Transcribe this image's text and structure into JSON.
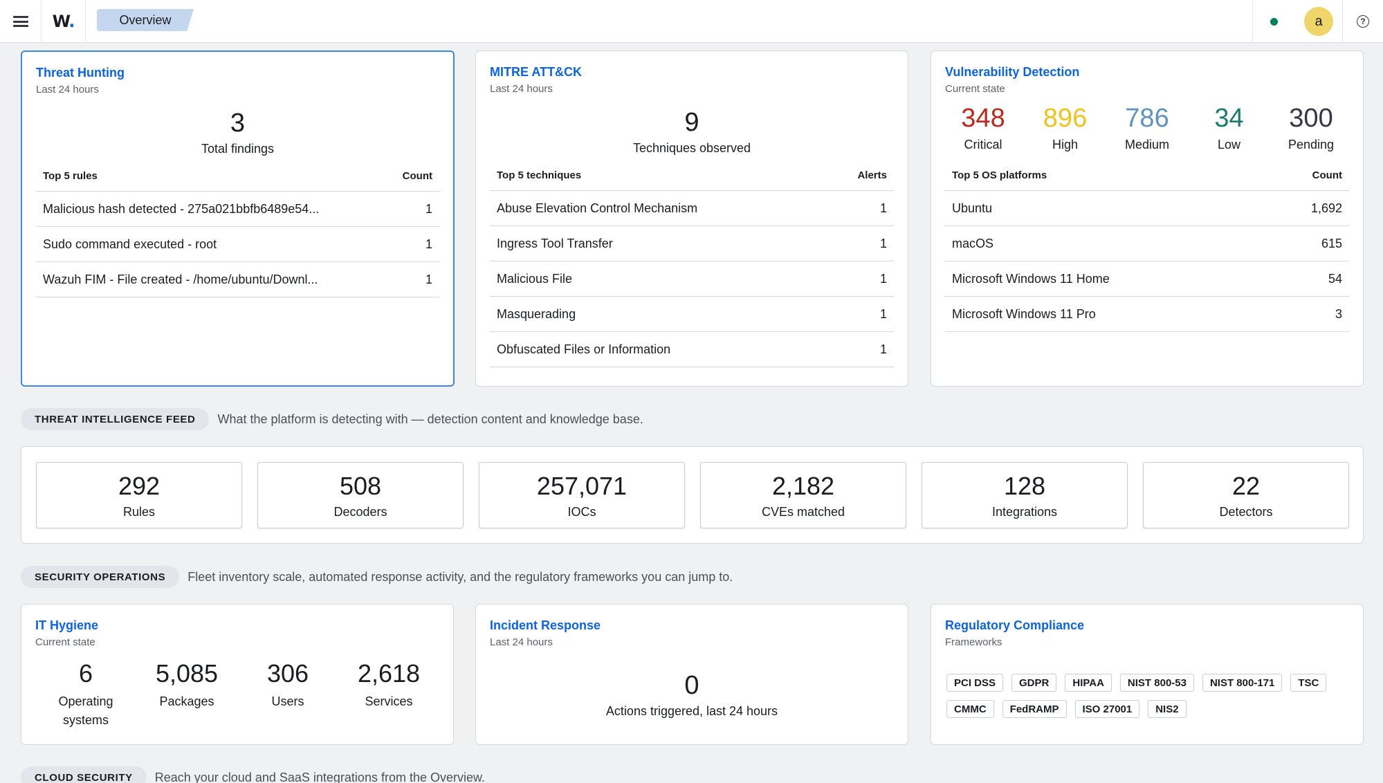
{
  "topbar": {
    "logo_text": "W",
    "logo_dot": ".",
    "breadcrumb": "Overview",
    "avatar_letter": "a",
    "help_glyph": "?",
    "status_color": "#00805a"
  },
  "threat_hunting": {
    "title": "Threat Hunting",
    "subtitle": "Last 24 hours",
    "total": "3",
    "total_label": "Total findings",
    "table_header": "Top 5 rules",
    "count_header": "Count",
    "rows": [
      {
        "name": "Malicious hash detected - 275a021bbfb6489e54...",
        "count": "1"
      },
      {
        "name": "Sudo command executed - root",
        "count": "1"
      },
      {
        "name": "Wazuh FIM - File created - /home/ubuntu/Downl...",
        "count": "1"
      }
    ]
  },
  "mitre": {
    "title": "MITRE ATT&CK",
    "subtitle": "Last 24 hours",
    "total": "9",
    "total_label": "Techniques observed",
    "table_header": "Top 5 techniques",
    "count_header": "Alerts",
    "rows": [
      {
        "name": "Abuse Elevation Control Mechanism",
        "count": "1"
      },
      {
        "name": "Ingress Tool Transfer",
        "count": "1"
      },
      {
        "name": "Malicious File",
        "count": "1"
      },
      {
        "name": "Masquerading",
        "count": "1"
      },
      {
        "name": "Obfuscated Files or Information",
        "count": "1"
      }
    ]
  },
  "vulnerability": {
    "title": "Vulnerability Detection",
    "subtitle": "Current state",
    "severities": [
      {
        "value": "348",
        "label": "Critical",
        "color": "#bd271e"
      },
      {
        "value": "896",
        "label": "High",
        "color": "#f0c21e"
      },
      {
        "value": "786",
        "label": "Medium",
        "color": "#6092c0"
      },
      {
        "value": "34",
        "label": "Low",
        "color": "#1a7d6e"
      },
      {
        "value": "300",
        "label": "Pending",
        "color": "#343741"
      }
    ],
    "table_header": "Top 5 OS platforms",
    "count_header": "Count",
    "rows": [
      {
        "name": "Ubuntu",
        "count": "1,692"
      },
      {
        "name": "macOS",
        "count": "615"
      },
      {
        "name": "Microsoft Windows 11 Home",
        "count": "54"
      },
      {
        "name": "Microsoft Windows 11 Pro",
        "count": "3"
      }
    ]
  },
  "threat_intel": {
    "label": "THREAT INTELLIGENCE FEED",
    "description": "What the platform is detecting with — detection content and knowledge base.",
    "items": [
      {
        "value": "292",
        "label": "Rules"
      },
      {
        "value": "508",
        "label": "Decoders"
      },
      {
        "value": "257,071",
        "label": "IOCs"
      },
      {
        "value": "2,182",
        "label": "CVEs matched"
      },
      {
        "value": "128",
        "label": "Integrations"
      },
      {
        "value": "22",
        "label": "Detectors"
      }
    ]
  },
  "security_ops": {
    "label": "SECURITY OPERATIONS",
    "description": "Fleet inventory scale, automated response activity, and the regulatory frameworks you can jump to."
  },
  "it_hygiene": {
    "title": "IT Hygiene",
    "subtitle": "Current state",
    "items": [
      {
        "value": "6",
        "label": "Operating systems"
      },
      {
        "value": "5,085",
        "label": "Packages"
      },
      {
        "value": "306",
        "label": "Users"
      },
      {
        "value": "2,618",
        "label": "Services"
      }
    ]
  },
  "incident_response": {
    "title": "Incident Response",
    "subtitle": "Last 24 hours",
    "total": "0",
    "total_label": "Actions triggered, last 24 hours"
  },
  "compliance": {
    "title": "Regulatory Compliance",
    "subtitle": "Frameworks",
    "frameworks": [
      "PCI DSS",
      "GDPR",
      "HIPAA",
      "NIST 800-53",
      "NIST 800-171",
      "TSC",
      "CMMC",
      "FedRAMP",
      "ISO 27001",
      "NIS2"
    ]
  },
  "cloud_security": {
    "label": "CLOUD SECURITY",
    "description": "Reach your cloud and SaaS integrations from the Overview."
  }
}
